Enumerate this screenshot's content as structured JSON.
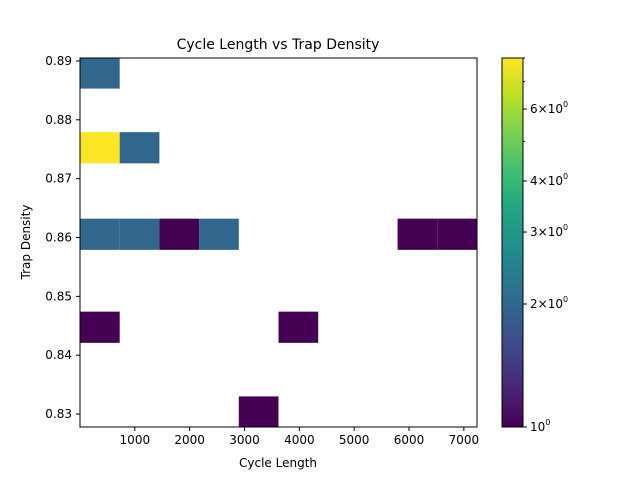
{
  "chart_data": {
    "type": "heatmap",
    "title": "Cycle Length vs Trap Density",
    "xlabel": "Cycle Length",
    "ylabel": "Trap Density",
    "xlim": [
      0,
      7240
    ],
    "ylim": [
      0.8278,
      0.8905
    ],
    "x_ticks": [
      1000,
      2000,
      3000,
      4000,
      5000,
      6000,
      7000
    ],
    "y_ticks": [
      0.83,
      0.84,
      0.85,
      0.86,
      0.87,
      0.88,
      0.89
    ],
    "color_scale": "log",
    "colormap": "viridis",
    "colorbar_range": [
      1,
      8
    ],
    "colorbar_ticks": [
      {
        "value": 1,
        "base": "10",
        "exp": "0",
        "coef": ""
      },
      {
        "value": 2,
        "base": "10",
        "exp": "0",
        "coef": "2×"
      },
      {
        "value": 3,
        "base": "10",
        "exp": "0",
        "coef": "3×"
      },
      {
        "value": 4,
        "base": "10",
        "exp": "0",
        "coef": "4×"
      },
      {
        "value": 6,
        "base": "10",
        "exp": "0",
        "coef": "6×"
      }
    ],
    "colorbar_minor_ticks": [
      5,
      7,
      8
    ],
    "cells": [
      {
        "x0": 0,
        "x1": 724,
        "y0": 0.8853,
        "y1": 0.8905,
        "count": 2
      },
      {
        "x0": 0,
        "x1": 724,
        "y0": 0.8726,
        "y1": 0.8779,
        "count": 8
      },
      {
        "x0": 724,
        "x1": 1448,
        "y0": 0.8726,
        "y1": 0.8779,
        "count": 2
      },
      {
        "x0": 0,
        "x1": 724,
        "y0": 0.8579,
        "y1": 0.8632,
        "count": 2
      },
      {
        "x0": 724,
        "x1": 1448,
        "y0": 0.8579,
        "y1": 0.8632,
        "count": 2
      },
      {
        "x0": 1448,
        "x1": 2172,
        "y0": 0.8579,
        "y1": 0.8632,
        "count": 1
      },
      {
        "x0": 2172,
        "x1": 2896,
        "y0": 0.8579,
        "y1": 0.8632,
        "count": 2
      },
      {
        "x0": 5792,
        "x1": 6516,
        "y0": 0.8579,
        "y1": 0.8632,
        "count": 1
      },
      {
        "x0": 6516,
        "x1": 7240,
        "y0": 0.8579,
        "y1": 0.8632,
        "count": 1
      },
      {
        "x0": 0,
        "x1": 724,
        "y0": 0.8421,
        "y1": 0.8474,
        "count": 1
      },
      {
        "x0": 3620,
        "x1": 4344,
        "y0": 0.8421,
        "y1": 0.8474,
        "count": 1
      },
      {
        "x0": 2896,
        "x1": 3620,
        "y0": 0.8278,
        "y1": 0.833,
        "count": 1
      }
    ]
  }
}
